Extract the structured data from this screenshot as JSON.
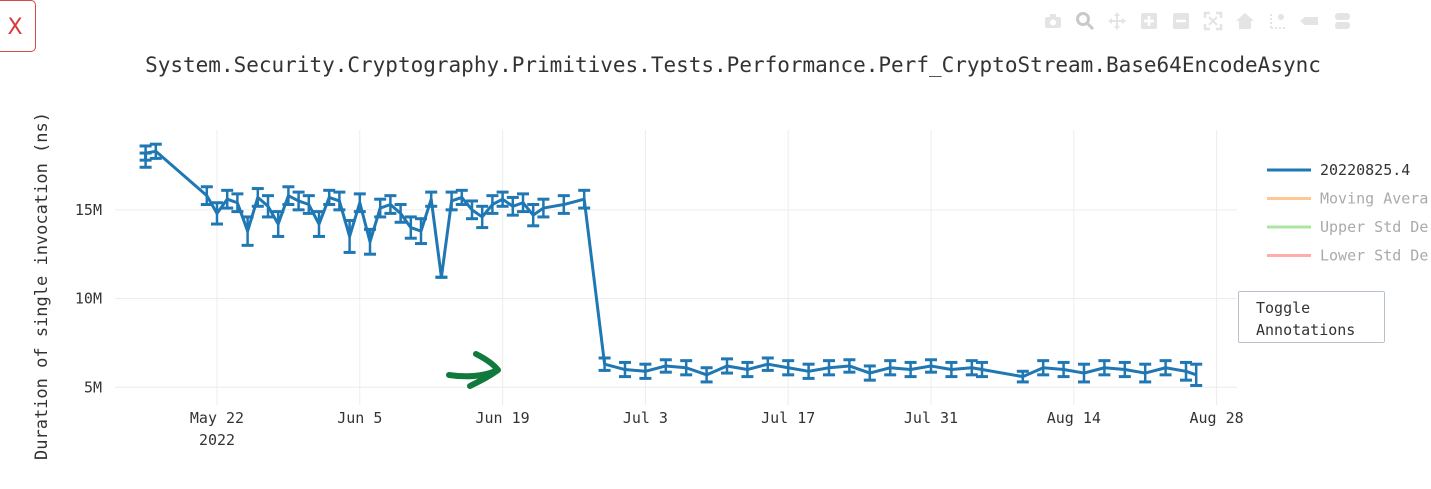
{
  "ui": {
    "close_label": "X",
    "toggle_label": "Toggle\nAnnotations",
    "modebar_icons": [
      "camera-icon",
      "zoom-icon",
      "pan-icon",
      "zoom-in-icon",
      "zoom-out-icon",
      "autoscale-icon",
      "reset-axes-icon",
      "spike-lines-icon",
      "hover-closest-icon",
      "hover-compare-icon"
    ]
  },
  "colors": {
    "series": "#1f77b4",
    "moving_average": "#ffbb78",
    "upper_std": "#98df8a",
    "lower_std": "#ff9896",
    "annotation_arrow": "#107a3c"
  },
  "chart_data": {
    "type": "line",
    "title": "System.Security.Cryptography.Primitives.Tests.Performance.Perf_CryptoStream.Base64EncodeAsync",
    "xlabel": "",
    "ylabel": "Duration of single invocation (ns)",
    "x_ticks": [
      "May 22",
      "Jun 5",
      "Jun 19",
      "Jul 3",
      "Jul 17",
      "Jul 31",
      "Aug 14",
      "Aug 28"
    ],
    "x_tick_year": "2022",
    "y_ticks": [
      "5M",
      "10M",
      "15M"
    ],
    "xlim": [
      "2022-05-12",
      "2022-08-30"
    ],
    "ylim": [
      4000000,
      19500000
    ],
    "grid": true,
    "legend": {
      "placement": "right",
      "entries": [
        "20220825.4",
        "Moving Avera",
        "Upper Std De",
        "Lower Std De"
      ]
    },
    "series": [
      {
        "name": "20220825.4",
        "x": [
          "2022-05-15",
          "2022-05-15",
          "2022-05-16",
          "2022-05-21",
          "2022-05-22",
          "2022-05-23",
          "2022-05-24",
          "2022-05-25",
          "2022-05-26",
          "2022-05-27",
          "2022-05-28",
          "2022-05-29",
          "2022-05-30",
          "2022-05-31",
          "2022-06-01",
          "2022-06-02",
          "2022-06-03",
          "2022-06-04",
          "2022-06-05",
          "2022-06-06",
          "2022-06-07",
          "2022-06-08",
          "2022-06-09",
          "2022-06-10",
          "2022-06-11",
          "2022-06-12",
          "2022-06-13",
          "2022-06-14",
          "2022-06-15",
          "2022-06-16",
          "2022-06-17",
          "2022-06-18",
          "2022-06-19",
          "2022-06-20",
          "2022-06-21",
          "2022-06-22",
          "2022-06-23",
          "2022-06-25",
          "2022-06-27",
          "2022-06-29",
          "2022-07-01",
          "2022-07-03",
          "2022-07-05",
          "2022-07-07",
          "2022-07-09",
          "2022-07-11",
          "2022-07-13",
          "2022-07-15",
          "2022-07-17",
          "2022-07-19",
          "2022-07-21",
          "2022-07-23",
          "2022-07-25",
          "2022-07-27",
          "2022-07-29",
          "2022-07-31",
          "2022-08-02",
          "2022-08-04",
          "2022-08-05",
          "2022-08-09",
          "2022-08-11",
          "2022-08-13",
          "2022-08-15",
          "2022-08-17",
          "2022-08-19",
          "2022-08-21",
          "2022-08-23",
          "2022-08-25",
          "2022-08-26"
        ],
        "y": [
          17800000,
          18200000,
          18300000,
          15800000,
          14800000,
          15600000,
          15400000,
          13800000,
          15700000,
          15200000,
          14200000,
          15800000,
          15500000,
          15300000,
          14200000,
          15700000,
          15500000,
          13500000,
          15400000,
          13200000,
          15100000,
          15300000,
          14800000,
          14000000,
          13800000,
          15600000,
          11200000,
          15500000,
          15700000,
          15000000,
          14600000,
          15300000,
          15600000,
          15200000,
          15400000,
          14700000,
          15100000,
          15300000,
          15600000,
          6300000,
          6000000,
          5900000,
          6200000,
          6100000,
          5700000,
          6200000,
          6000000,
          6300000,
          6100000,
          5900000,
          6100000,
          6200000,
          5800000,
          6100000,
          6000000,
          6200000,
          6000000,
          6100000,
          6000000,
          5600000,
          6100000,
          6000000,
          5800000,
          6100000,
          6000000,
          5800000,
          6100000,
          5900000,
          5700000
        ],
        "err": [
          400000,
          400000,
          400000,
          500000,
          600000,
          500000,
          500000,
          800000,
          500000,
          600000,
          700000,
          500000,
          500000,
          500000,
          700000,
          400000,
          500000,
          900000,
          500000,
          700000,
          500000,
          500000,
          500000,
          600000,
          700000,
          400000,
          0,
          500000,
          400000,
          500000,
          600000,
          500000,
          400000,
          500000,
          500000,
          600000,
          500000,
          500000,
          500000,
          350000,
          400000,
          400000,
          350000,
          400000,
          400000,
          400000,
          400000,
          350000,
          400000,
          400000,
          400000,
          350000,
          400000,
          400000,
          400000,
          350000,
          400000,
          400000,
          400000,
          300000,
          400000,
          400000,
          500000,
          400000,
          400000,
          500000,
          400000,
          500000,
          600000
        ]
      }
    ]
  }
}
